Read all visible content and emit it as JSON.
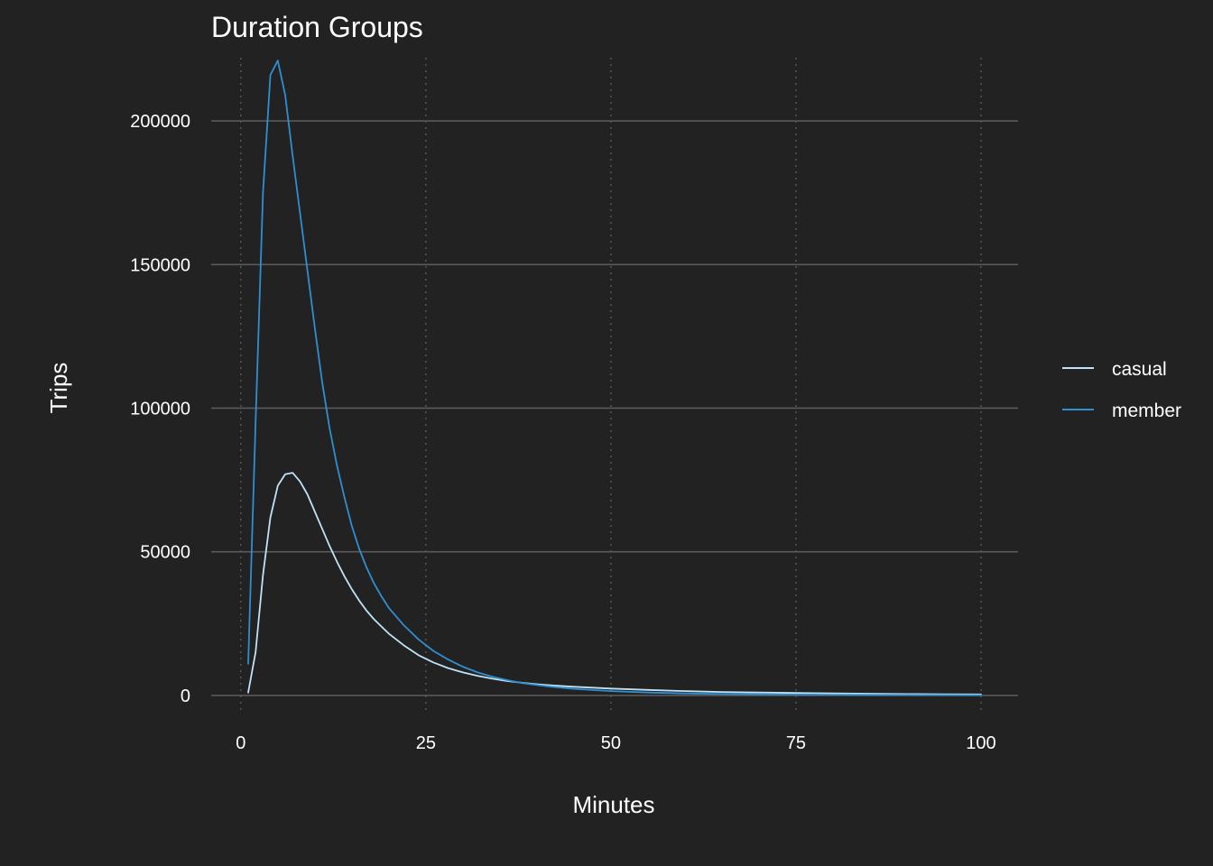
{
  "chart_data": {
    "type": "line",
    "title": "Duration Groups",
    "xlabel": "Minutes",
    "ylabel": "Trips",
    "xlim": [
      -4,
      105
    ],
    "ylim": [
      -6000,
      222000
    ],
    "x_ticks": [
      0,
      25,
      50,
      75,
      100
    ],
    "y_ticks": [
      0,
      50000,
      100000,
      150000,
      200000
    ],
    "grid": true,
    "legend_position": "right",
    "series": [
      {
        "name": "casual",
        "color": "#bfe3f5",
        "x": [
          1,
          2,
          3,
          4,
          5,
          6,
          7,
          8,
          9,
          10,
          11,
          12,
          13,
          14,
          15,
          16,
          17,
          18,
          19,
          20,
          22,
          24,
          26,
          28,
          30,
          32,
          34,
          36,
          38,
          40,
          42,
          45,
          50,
          55,
          60,
          65,
          70,
          75,
          80,
          85,
          90,
          95,
          100
        ],
        "y": [
          1000,
          15000,
          42000,
          62000,
          73000,
          77000,
          77500,
          74500,
          70000,
          64000,
          58000,
          52000,
          46500,
          41500,
          37000,
          33000,
          29500,
          26500,
          24000,
          21500,
          17500,
          14000,
          11500,
          9500,
          8000,
          6800,
          5800,
          5000,
          4400,
          3900,
          3500,
          3000,
          2400,
          1900,
          1500,
          1200,
          1000,
          850,
          700,
          580,
          480,
          400,
          330
        ]
      },
      {
        "name": "member",
        "color": "#2f8fd0",
        "x": [
          1,
          2,
          3,
          4,
          5,
          6,
          7,
          8,
          9,
          10,
          11,
          12,
          13,
          14,
          15,
          16,
          17,
          18,
          19,
          20,
          22,
          24,
          26,
          28,
          30,
          32,
          34,
          36,
          38,
          40,
          42,
          45,
          50,
          55,
          60,
          65,
          70,
          75,
          80,
          85,
          90,
          95,
          100
        ],
        "y": [
          11000,
          95000,
          175000,
          216000,
          221000,
          209000,
          188000,
          168000,
          148000,
          128000,
          109000,
          93000,
          80000,
          69000,
          59000,
          51000,
          44500,
          39000,
          34500,
          30500,
          24500,
          19500,
          15500,
          12500,
          10000,
          8000,
          6500,
          5300,
          4300,
          3600,
          3000,
          2300,
          1500,
          1000,
          700,
          500,
          380,
          300,
          240,
          190,
          150,
          120,
          100
        ]
      }
    ]
  }
}
